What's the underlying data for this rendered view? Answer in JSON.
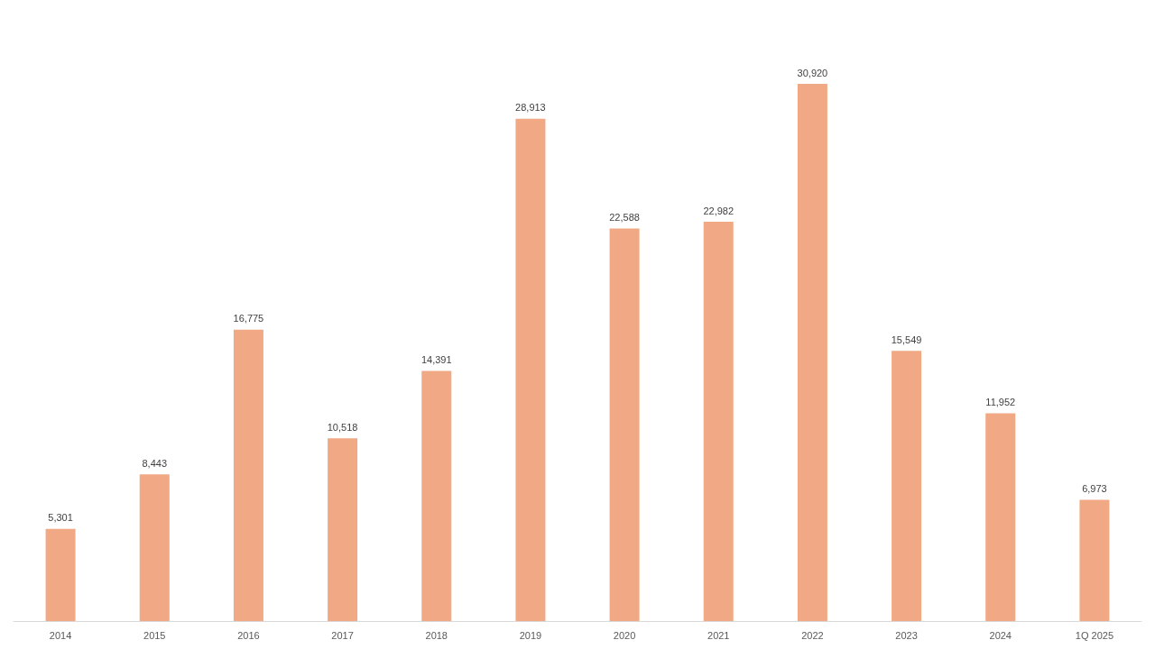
{
  "chart_data": {
    "type": "bar",
    "categories": [
      "2014",
      "2015",
      "2016",
      "2017",
      "2018",
      "2019",
      "2020",
      "2021",
      "2022",
      "2023",
      "2024",
      "1Q 2025"
    ],
    "values": [
      5301,
      8443,
      16775,
      10518,
      14391,
      28913,
      22588,
      22982,
      30920,
      15549,
      11952,
      6973
    ],
    "value_labels": [
      "5,301",
      "8,443",
      "16,775",
      "10,518",
      "14,391",
      "28,913",
      "22,588",
      "22,982",
      "30,920",
      "15,549",
      "11,952",
      "6,973"
    ],
    "color": "#f0a984"
  }
}
